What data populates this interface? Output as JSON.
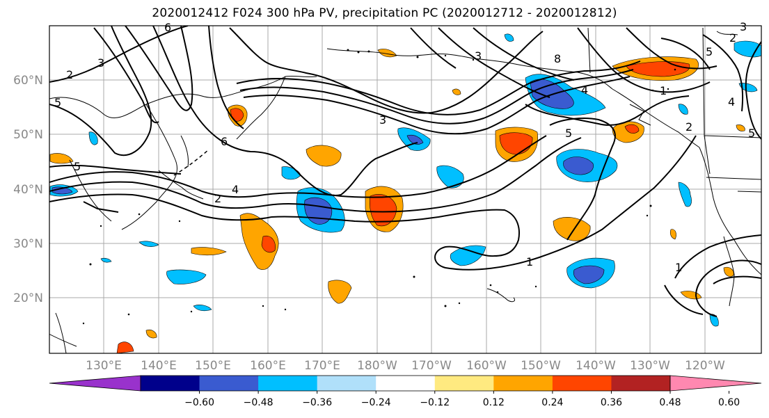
{
  "title": "2020012412 F024 300 hPa PV, precipitation PC (2020012712 - 2020012812)",
  "map": {
    "lat_labels": [
      "60°N",
      "50°N",
      "40°N",
      "30°N",
      "20°N"
    ],
    "lon_labels": [
      "130°E",
      "140°E",
      "150°E",
      "160°E",
      "170°E",
      "180°W",
      "170°W",
      "160°W",
      "150°W",
      "140°W",
      "130°W",
      "120°W"
    ],
    "contour_labels": [
      "2",
      "3",
      "6",
      "4",
      "2",
      "3",
      "3",
      "8",
      "4",
      "5",
      "1",
      "5",
      "2",
      "5",
      "1",
      "4",
      "5",
      "1",
      "3",
      "2",
      "6",
      "5"
    ]
  },
  "colorbar": {
    "colors": [
      "#9932cc",
      "#00008b",
      "#3a5bd0",
      "#00bfff",
      "#b0e0fa",
      "#ffffff",
      "#ffea80",
      "#ffa500",
      "#ff4500",
      "#b22222",
      "#ff88b0"
    ],
    "ticks": [
      "−0.60",
      "−0.48",
      "−0.36",
      "−0.24",
      "−0.12",
      "0.12",
      "0.24",
      "0.36",
      "0.48",
      "0.60"
    ]
  }
}
